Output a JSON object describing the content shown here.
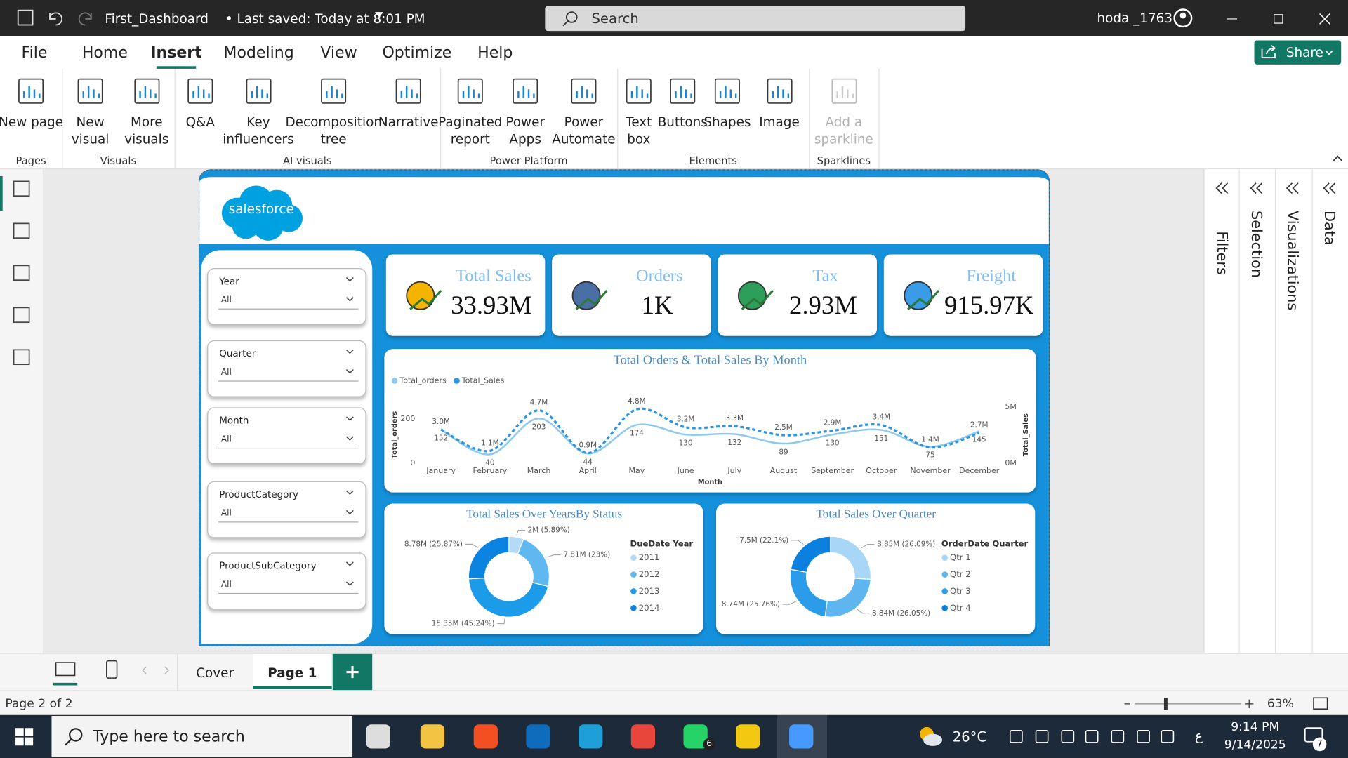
{
  "title_bar": {
    "file_name": "First_Dashboard",
    "saved_status": "• Last saved: Today at 8:01 PM",
    "search_placeholder": "Search",
    "user": "hoda _1763"
  },
  "menu": {
    "tabs": [
      "File",
      "Home",
      "Insert",
      "Modeling",
      "View",
      "Optimize",
      "Help"
    ],
    "active_tab": 2,
    "share": "Share"
  },
  "ribbon": {
    "groups": [
      {
        "name": "Pages",
        "buttons": [
          "New page"
        ]
      },
      {
        "name": "Visuals",
        "buttons": [
          "New visual",
          "More visuals"
        ]
      },
      {
        "name": "AI visuals",
        "buttons": [
          "Q&A",
          "Key influencers",
          "Decomposition tree",
          "Narrative"
        ]
      },
      {
        "name": "Power Platform",
        "buttons": [
          "Paginated report",
          "Power Apps",
          "Power Automate"
        ]
      },
      {
        "name": "Elements",
        "buttons": [
          "Text box",
          "Buttons",
          "Shapes",
          "Image"
        ]
      },
      {
        "name": "Sparklines",
        "buttons": [
          "Add a sparkline"
        ],
        "disabled": true
      }
    ]
  },
  "panes": [
    "Filters",
    "Selection",
    "Visualizations",
    "Data"
  ],
  "report": {
    "logo": "salesforce",
    "slicers": [
      {
        "label": "Year",
        "value": "All"
      },
      {
        "label": "Quarter",
        "value": "All"
      },
      {
        "label": "Month",
        "value": "All"
      },
      {
        "label": "ProductCategory",
        "value": "All"
      },
      {
        "label": "ProductSubCategory",
        "value": "All"
      }
    ],
    "kpis": [
      {
        "label": "Total Sales",
        "value": "33.93M"
      },
      {
        "label": "Orders",
        "value": "1K"
      },
      {
        "label": "Tax",
        "value": "2.93M"
      },
      {
        "label": "Freight",
        "value": "915.97K"
      }
    ],
    "line_chart": {
      "type": "line",
      "title": "Total Orders & Total Sales By Month",
      "x_label": "Month",
      "y_label": "Total_orders",
      "y2_label": "Total_Sales",
      "categories": [
        "January",
        "February",
        "March",
        "April",
        "May",
        "June",
        "July",
        "August",
        "September",
        "October",
        "November",
        "December"
      ],
      "series": [
        {
          "name": "Total_orders",
          "color": "#8cc8f0",
          "values": [
            152,
            40,
            203,
            44,
            174,
            130,
            132,
            89,
            130,
            151,
            75,
            145
          ]
        },
        {
          "name": "Total_Sales",
          "color": "#2b95e0",
          "axis": "y2",
          "dashed": true,
          "values": [
            3.0,
            1.1,
            4.7,
            0.9,
            4.8,
            3.2,
            3.3,
            2.5,
            2.9,
            3.4,
            1.4,
            2.7
          ],
          "value_labels": [
            "3.0M",
            "1.1M",
            "4.7M",
            "0.9M",
            "4.8M",
            "3.2M",
            "3.3M",
            "2.5M",
            "2.9M",
            "3.4M",
            "1.4M",
            "2.7M"
          ]
        }
      ],
      "ylim": [
        0,
        265
      ],
      "yticks": [
        0,
        200
      ],
      "y2lim": [
        0,
        5.2
      ],
      "y2ticks": [
        {
          "value": 0,
          "label": "0M"
        },
        {
          "value": 5,
          "label": "5M"
        }
      ],
      "legend": "top-left"
    },
    "donut_charts": [
      {
        "type": "donut",
        "title": "Total Sales Over YearsBy Status",
        "legend_title": "DueDate Year",
        "categories": [
          "2011",
          "2012",
          "2013",
          "2014"
        ],
        "values": [
          2,
          7.81,
          15.35,
          8.78
        ],
        "value_labels": [
          "2M (5.89%)",
          "7.81M (23%)",
          "15.35M (45.24%)",
          "8.78M (25.87%)"
        ],
        "colors": [
          "#b3dbf7",
          "#5fb8f0",
          "#1c9be8",
          "#0a84e0"
        ]
      },
      {
        "type": "donut",
        "title": "Total Sales Over Quarter",
        "legend_title": "OrderDate Quarter",
        "categories": [
          "Qtr 1",
          "Qtr 2",
          "Qtr 3",
          "Qtr 4"
        ],
        "values": [
          8.85,
          8.84,
          8.74,
          7.5
        ],
        "value_labels": [
          "8.85M (26.09%)",
          "8.84M (26.05%)",
          "8.74M (25.76%)",
          "7.5M (22.1%)"
        ],
        "colors": [
          "#a8d6f6",
          "#5db6ef",
          "#2a9ce9",
          "#0b80df"
        ]
      }
    ]
  },
  "page_tabs": {
    "tabs": [
      "Cover",
      "Page 1"
    ],
    "active_tab": 1
  },
  "status_bar": {
    "page": "Page 2 of 2",
    "zoom": "63%"
  },
  "taskbar": {
    "search": "Type here to search",
    "weather": "26°C",
    "input_language": "ع",
    "time": "9:14 PM",
    "date": "9/14/2025",
    "notifications": "7",
    "whatsapp_badge": "6"
  }
}
